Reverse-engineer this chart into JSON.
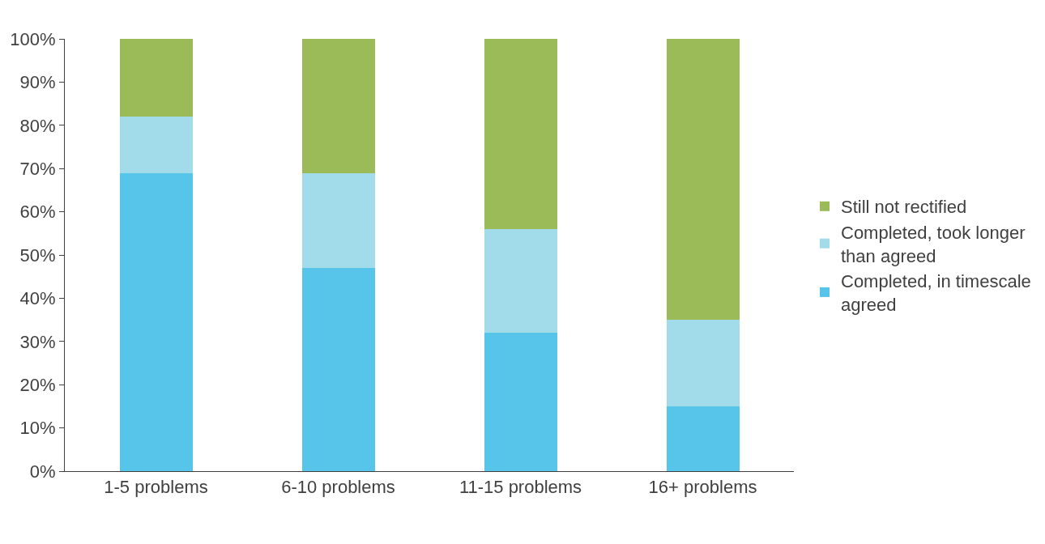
{
  "chart_data": {
    "type": "bar",
    "stacked": true,
    "categories": [
      "1-5 problems",
      "6-10 problems",
      "11-15 problems",
      "16+ problems"
    ],
    "series": [
      {
        "name": "Completed, in timescale agreed",
        "color": "#57c5ea",
        "values": [
          69,
          47,
          32,
          15
        ]
      },
      {
        "name": "Completed, took longer than agreed",
        "color": "#a2dbe9",
        "values": [
          13,
          22,
          24,
          20
        ]
      },
      {
        "name": "Still not rectified",
        "color": "#9bbb59",
        "values": [
          18,
          31,
          44,
          65
        ]
      }
    ],
    "ylim": [
      0,
      100
    ],
    "yticks": [
      {
        "value": 0,
        "label": "0%"
      },
      {
        "value": 10,
        "label": "10%"
      },
      {
        "value": 20,
        "label": "20%"
      },
      {
        "value": 30,
        "label": "30%"
      },
      {
        "value": 40,
        "label": "40%"
      },
      {
        "value": 50,
        "label": "50%"
      },
      {
        "value": 60,
        "label": "60%"
      },
      {
        "value": 70,
        "label": "70%"
      },
      {
        "value": 80,
        "label": "80%"
      },
      {
        "value": 90,
        "label": "90%"
      },
      {
        "value": 100,
        "label": "100%"
      }
    ],
    "legend": "right"
  }
}
